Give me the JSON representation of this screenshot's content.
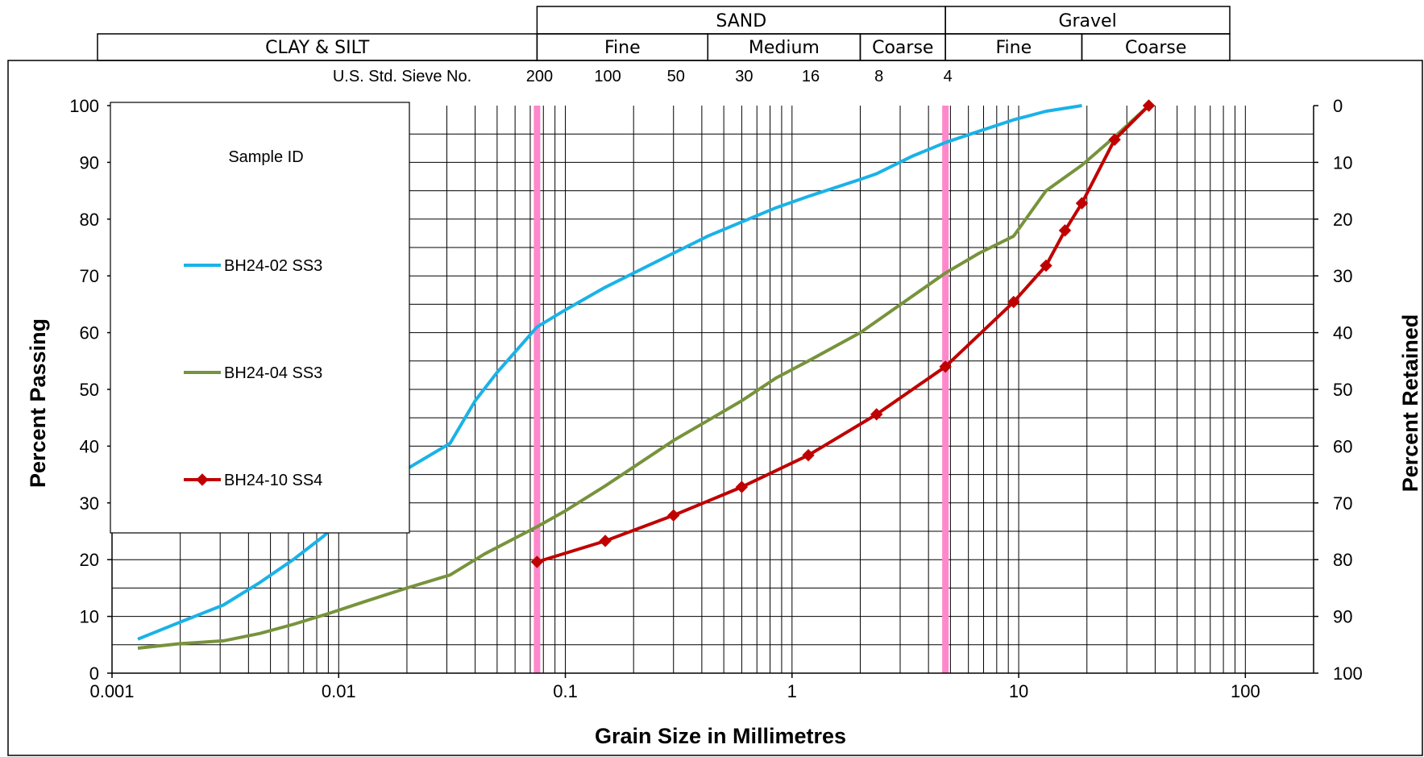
{
  "header": {
    "rows": [
      [
        {
          "label": "SAND",
          "from": 0.075,
          "to": 4.75
        },
        {
          "label": "Gravel",
          "from": 4.75,
          "to": 100
        }
      ],
      [
        {
          "label": "CLAY & SILT",
          "from": null,
          "to": 0.075
        },
        {
          "label": "Fine",
          "from": 0.075,
          "to": 0.425
        },
        {
          "label": "Medium",
          "from": 0.425,
          "to": 2.0
        },
        {
          "label": "Coarse",
          "from": 2.0,
          "to": 4.75
        },
        {
          "label": "Fine",
          "from": 4.75,
          "to": 19
        },
        {
          "label": "Coarse",
          "from": 19,
          "to": 100
        }
      ]
    ]
  },
  "sieve": {
    "label": "U.S. Std. Sieve No.",
    "numbers": [
      {
        "label": "200",
        "mm": 0.075
      },
      {
        "label": "100",
        "mm": 0.15
      },
      {
        "label": "50",
        "mm": 0.3
      },
      {
        "label": "30",
        "mm": 0.6
      },
      {
        "label": "16",
        "mm": 1.18
      },
      {
        "label": "8",
        "mm": 2.36
      },
      {
        "label": "4",
        "mm": 4.75
      }
    ]
  },
  "legend": {
    "title": "Sample ID"
  },
  "colors": {
    "grid": "#000000",
    "boundary_marker": "#ff88cc"
  },
  "chart_data": {
    "type": "line",
    "xscale": "log",
    "xlim": [
      0.001,
      200
    ],
    "ylim": [
      0,
      100
    ],
    "y2lim": [
      100,
      0
    ],
    "xlabel": "Grain Size in Millimetres",
    "ylabel": "Percent Passing",
    "y2label": "Percent Retained",
    "x_ticks": [
      {
        "label": "0.001",
        "value": 0.001
      },
      {
        "label": "0.01",
        "value": 0.01
      },
      {
        "label": "0.1",
        "value": 0.1
      },
      {
        "label": "1",
        "value": 1
      },
      {
        "label": "10",
        "value": 10
      },
      {
        "label": "100",
        "value": 100
      }
    ],
    "y_ticks": [
      0,
      10,
      20,
      30,
      40,
      50,
      60,
      70,
      80,
      90,
      100
    ],
    "y2_ticks": [
      100,
      90,
      80,
      70,
      60,
      50,
      40,
      30,
      20,
      10,
      0
    ],
    "grid": true,
    "legend_position": "upper-left",
    "boundary_lines": [
      0.075,
      4.75
    ],
    "series": [
      {
        "name": "BH24-02 SS3",
        "color": "#1ab2e8",
        "marker": "none",
        "x": [
          0.0013,
          0.002,
          0.0031,
          0.0045,
          0.0063,
          0.0085,
          0.011,
          0.02,
          0.031,
          0.04,
          0.05,
          0.075,
          0.1,
          0.15,
          0.3,
          0.425,
          0.6,
          0.85,
          1.18,
          2.0,
          2.36,
          3.35,
          4.75,
          6.7,
          9.5,
          13.2,
          19.0
        ],
        "y": [
          6,
          9,
          12,
          16,
          20,
          24,
          28,
          36,
          40.5,
          48,
          53,
          61,
          64,
          68,
          74,
          77,
          79.5,
          82,
          84,
          87,
          88,
          91,
          93.5,
          95.5,
          97.5,
          99,
          100
        ]
      },
      {
        "name": "BH24-04 SS3",
        "color": "#77933c",
        "marker": "none",
        "x": [
          0.0013,
          0.002,
          0.0031,
          0.0045,
          0.0063,
          0.009,
          0.013,
          0.02,
          0.031,
          0.044,
          0.075,
          0.1,
          0.15,
          0.3,
          0.425,
          0.6,
          0.85,
          1.18,
          2.0,
          2.36,
          4.75,
          6.7,
          9.5,
          13.2,
          19.0,
          26.5,
          37.5
        ],
        "y": [
          4.4,
          5.2,
          5.7,
          7,
          8.6,
          10.5,
          12.6,
          15,
          17.3,
          21,
          25.8,
          28.6,
          33,
          41,
          44.5,
          48,
          52,
          55,
          60,
          62,
          70.5,
          74,
          77,
          85,
          89.5,
          94.5,
          100
        ]
      },
      {
        "name": "BH24-10 SS4",
        "color": "#c00000",
        "marker": "diamond",
        "x": [
          0.075,
          0.15,
          0.3,
          0.6,
          1.18,
          2.36,
          4.75,
          9.5,
          13.2,
          16.0,
          19.0,
          26.5,
          37.5
        ],
        "y": [
          19.6,
          23.3,
          27.8,
          32.8,
          38.4,
          45.6,
          54,
          65.4,
          71.8,
          78,
          82.8,
          94,
          100
        ]
      }
    ]
  }
}
